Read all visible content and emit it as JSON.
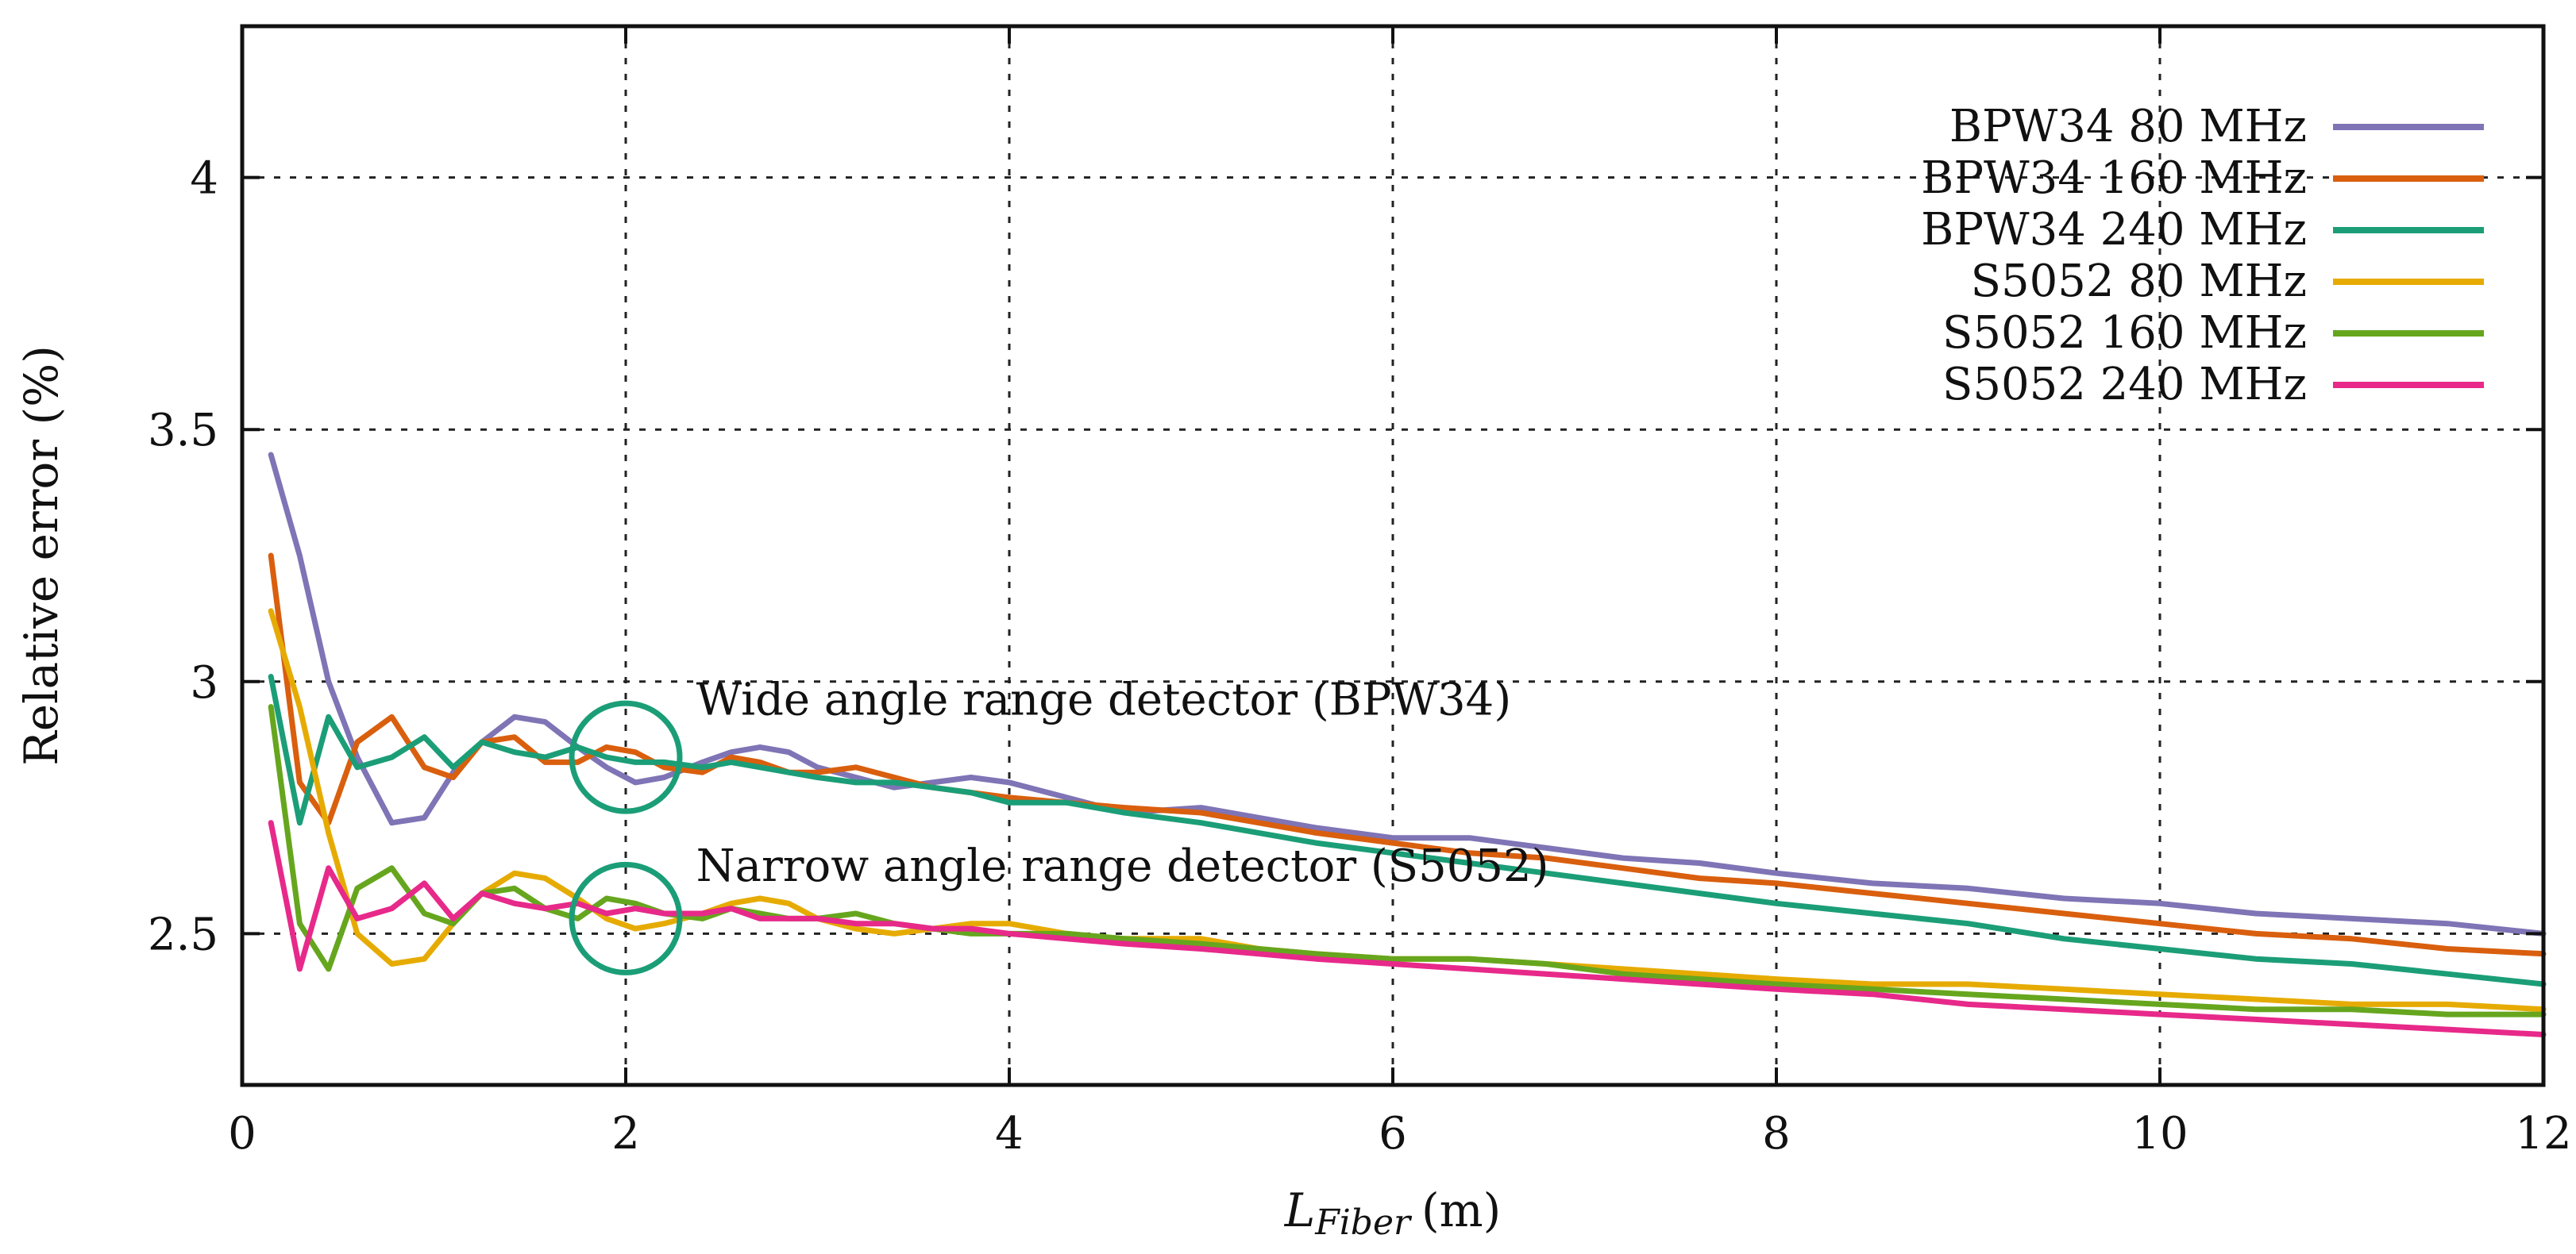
{
  "chart_data": {
    "type": "line",
    "xlabel_main": "L",
    "xlabel_sub": "Fiber",
    "xlabel_unit": "(m)",
    "ylabel": "Relative error (%)",
    "xlim": [
      0,
      12
    ],
    "ylim": [
      2.2,
      4.3
    ],
    "xticks": [
      0,
      2,
      4,
      6,
      8,
      10,
      12
    ],
    "xtick_labels": [
      "0",
      "2",
      "4",
      "6",
      "8",
      "10",
      "12"
    ],
    "yticks": [
      2.5,
      3,
      3.5,
      4
    ],
    "ytick_labels": [
      "2.5",
      "3",
      "3.5",
      "4"
    ],
    "grid": true,
    "legend_position": "top-right",
    "series": [
      {
        "name": "BPW34 80 MHz",
        "color": "#7f74b5",
        "x": [
          0.15,
          0.3,
          0.45,
          0.6,
          0.78,
          0.95,
          1.1,
          1.25,
          1.42,
          1.58,
          1.75,
          1.9,
          2.05,
          2.2,
          2.4,
          2.55,
          2.7,
          2.85,
          3.0,
          3.2,
          3.4,
          3.6,
          3.8,
          4.0,
          4.3,
          4.6,
          5.0,
          5.3,
          5.6,
          6.0,
          6.4,
          6.8,
          7.2,
          7.6,
          8.0,
          8.5,
          9.0,
          9.5,
          10.0,
          10.5,
          11.0,
          11.5,
          12.0
        ],
        "values": [
          3.45,
          3.25,
          3.0,
          2.85,
          2.72,
          2.73,
          2.82,
          2.88,
          2.93,
          2.92,
          2.87,
          2.83,
          2.8,
          2.81,
          2.84,
          2.86,
          2.87,
          2.86,
          2.83,
          2.81,
          2.79,
          2.8,
          2.81,
          2.8,
          2.77,
          2.74,
          2.75,
          2.73,
          2.71,
          2.69,
          2.69,
          2.67,
          2.65,
          2.64,
          2.62,
          2.6,
          2.59,
          2.57,
          2.56,
          2.54,
          2.53,
          2.52,
          2.5
        ]
      },
      {
        "name": "BPW34 160 MHz",
        "color": "#d95f0e",
        "x": [
          0.15,
          0.3,
          0.45,
          0.6,
          0.78,
          0.95,
          1.1,
          1.25,
          1.42,
          1.58,
          1.75,
          1.9,
          2.05,
          2.2,
          2.4,
          2.55,
          2.7,
          2.85,
          3.0,
          3.2,
          3.4,
          3.6,
          3.8,
          4.0,
          4.3,
          4.6,
          5.0,
          5.3,
          5.6,
          6.0,
          6.4,
          6.8,
          7.2,
          7.6,
          8.0,
          8.5,
          9.0,
          9.5,
          10.0,
          10.5,
          11.0,
          11.5,
          12.0
        ],
        "values": [
          3.25,
          2.8,
          2.72,
          2.88,
          2.93,
          2.83,
          2.81,
          2.88,
          2.89,
          2.84,
          2.84,
          2.87,
          2.86,
          2.83,
          2.82,
          2.85,
          2.84,
          2.82,
          2.82,
          2.83,
          2.81,
          2.79,
          2.78,
          2.77,
          2.76,
          2.75,
          2.74,
          2.72,
          2.7,
          2.68,
          2.66,
          2.65,
          2.63,
          2.61,
          2.6,
          2.58,
          2.56,
          2.54,
          2.52,
          2.5,
          2.49,
          2.47,
          2.46
        ]
      },
      {
        "name": "BPW34 240 MHz",
        "color": "#1b9e77",
        "x": [
          0.15,
          0.3,
          0.45,
          0.6,
          0.78,
          0.95,
          1.1,
          1.25,
          1.42,
          1.58,
          1.75,
          1.9,
          2.05,
          2.2,
          2.4,
          2.55,
          2.7,
          2.85,
          3.0,
          3.2,
          3.4,
          3.6,
          3.8,
          4.0,
          4.3,
          4.6,
          5.0,
          5.3,
          5.6,
          6.0,
          6.4,
          6.8,
          7.2,
          7.6,
          8.0,
          8.5,
          9.0,
          9.5,
          10.0,
          10.5,
          11.0,
          11.5,
          12.0
        ],
        "values": [
          3.01,
          2.72,
          2.93,
          2.83,
          2.85,
          2.89,
          2.83,
          2.88,
          2.86,
          2.85,
          2.87,
          2.85,
          2.84,
          2.84,
          2.83,
          2.84,
          2.83,
          2.82,
          2.81,
          2.8,
          2.8,
          2.79,
          2.78,
          2.76,
          2.76,
          2.74,
          2.72,
          2.7,
          2.68,
          2.66,
          2.64,
          2.62,
          2.6,
          2.58,
          2.56,
          2.54,
          2.52,
          2.49,
          2.47,
          2.45,
          2.44,
          2.42,
          2.4
        ]
      },
      {
        "name": "S5052 80 MHz",
        "color": "#e6ab02",
        "x": [
          0.15,
          0.3,
          0.45,
          0.6,
          0.78,
          0.95,
          1.1,
          1.25,
          1.42,
          1.58,
          1.75,
          1.9,
          2.05,
          2.2,
          2.4,
          2.55,
          2.7,
          2.85,
          3.0,
          3.2,
          3.4,
          3.6,
          3.8,
          4.0,
          4.3,
          4.6,
          5.0,
          5.3,
          5.6,
          6.0,
          6.4,
          6.8,
          7.2,
          7.6,
          8.0,
          8.5,
          9.0,
          9.5,
          10.0,
          10.5,
          11.0,
          11.5,
          12.0
        ],
        "values": [
          3.14,
          2.95,
          2.7,
          2.5,
          2.44,
          2.45,
          2.52,
          2.58,
          2.62,
          2.61,
          2.57,
          2.53,
          2.51,
          2.52,
          2.54,
          2.56,
          2.57,
          2.56,
          2.53,
          2.51,
          2.5,
          2.51,
          2.52,
          2.52,
          2.5,
          2.49,
          2.49,
          2.47,
          2.46,
          2.45,
          2.45,
          2.44,
          2.43,
          2.42,
          2.41,
          2.4,
          2.4,
          2.39,
          2.38,
          2.37,
          2.36,
          2.36,
          2.35
        ]
      },
      {
        "name": "S5052 160 MHz",
        "color": "#66a61e",
        "x": [
          0.15,
          0.3,
          0.45,
          0.6,
          0.78,
          0.95,
          1.1,
          1.25,
          1.42,
          1.58,
          1.75,
          1.9,
          2.05,
          2.2,
          2.4,
          2.55,
          2.7,
          2.85,
          3.0,
          3.2,
          3.4,
          3.6,
          3.8,
          4.0,
          4.3,
          4.6,
          5.0,
          5.3,
          5.6,
          6.0,
          6.4,
          6.8,
          7.2,
          7.6,
          8.0,
          8.5,
          9.0,
          9.5,
          10.0,
          10.5,
          11.0,
          11.5,
          12.0
        ],
        "values": [
          2.95,
          2.52,
          2.43,
          2.59,
          2.63,
          2.54,
          2.52,
          2.58,
          2.59,
          2.55,
          2.53,
          2.57,
          2.56,
          2.54,
          2.53,
          2.55,
          2.54,
          2.53,
          2.53,
          2.54,
          2.52,
          2.51,
          2.5,
          2.5,
          2.5,
          2.49,
          2.48,
          2.47,
          2.46,
          2.45,
          2.45,
          2.44,
          2.42,
          2.41,
          2.4,
          2.39,
          2.38,
          2.37,
          2.36,
          2.35,
          2.35,
          2.34,
          2.34
        ]
      },
      {
        "name": "S5052 240 MHz",
        "color": "#e7298a",
        "x": [
          0.15,
          0.3,
          0.45,
          0.6,
          0.78,
          0.95,
          1.1,
          1.25,
          1.42,
          1.58,
          1.75,
          1.9,
          2.05,
          2.2,
          2.4,
          2.55,
          2.7,
          2.85,
          3.0,
          3.2,
          3.4,
          3.6,
          3.8,
          4.0,
          4.3,
          4.6,
          5.0,
          5.3,
          5.6,
          6.0,
          6.4,
          6.8,
          7.2,
          7.6,
          8.0,
          8.5,
          9.0,
          9.5,
          10.0,
          10.5,
          11.0,
          11.5,
          12.0
        ],
        "values": [
          2.72,
          2.43,
          2.63,
          2.53,
          2.55,
          2.6,
          2.53,
          2.58,
          2.56,
          2.55,
          2.56,
          2.54,
          2.55,
          2.54,
          2.54,
          2.55,
          2.53,
          2.53,
          2.53,
          2.52,
          2.52,
          2.51,
          2.51,
          2.5,
          2.49,
          2.48,
          2.47,
          2.46,
          2.45,
          2.44,
          2.43,
          2.42,
          2.41,
          2.4,
          2.39,
          2.38,
          2.36,
          2.35,
          2.34,
          2.33,
          2.32,
          2.31,
          2.3
        ]
      }
    ],
    "annotations": [
      {
        "text": "Wide angle range detector (BPW34)",
        "x": 2.4,
        "y": 2.95,
        "circle_x": 2.0,
        "circle_y": 2.85,
        "circle_color": "#1b9e77"
      },
      {
        "text": "Narrow angle range detector (S5052)",
        "x": 2.4,
        "y": 2.62,
        "circle_x": 2.0,
        "circle_y": 2.53,
        "circle_color": "#1b9e77"
      }
    ]
  }
}
